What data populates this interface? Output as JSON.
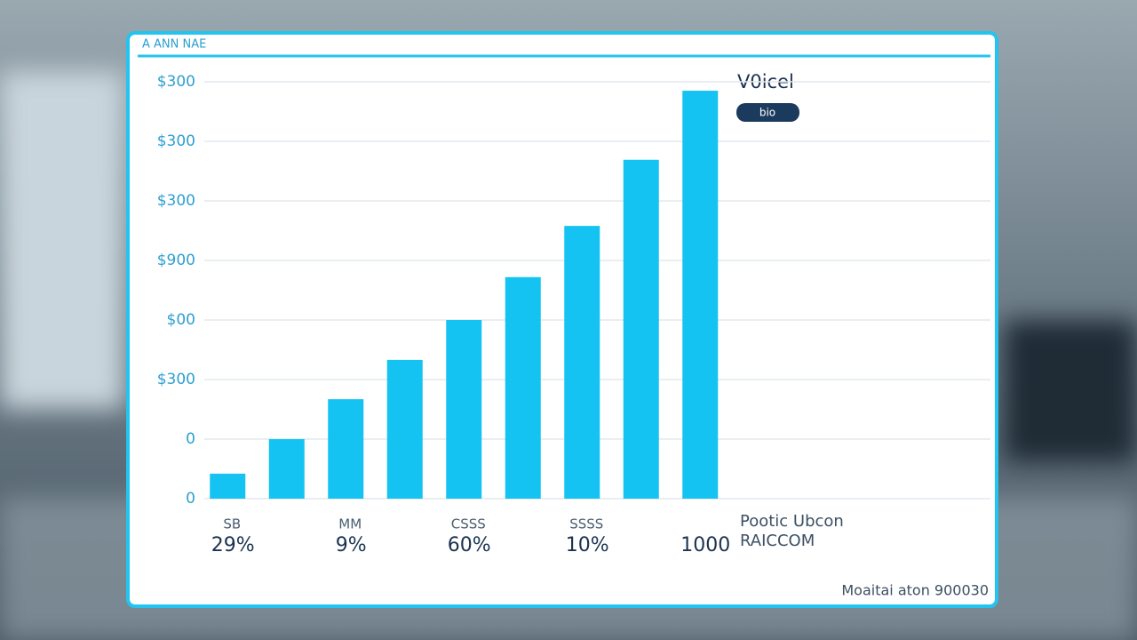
{
  "chart_data": {
    "type": "bar",
    "title": "A ANN NAE",
    "categories": [
      "SB",
      null,
      "MM",
      null,
      "CSSS",
      null,
      "SSSS",
      null,
      null
    ],
    "category_notes": [
      "29%",
      null,
      "9%",
      null,
      "60%",
      null,
      "10%",
      null,
      "1000"
    ],
    "series": [
      {
        "name": "V0icel",
        "color": "#14c3f2",
        "values": [
          0.42,
          1.0,
          1.67,
          2.33,
          3.0,
          3.72,
          4.58,
          5.69,
          6.85
        ]
      }
    ],
    "legend_badge": "bio",
    "ylim": [
      0,
      7
    ],
    "yticks": [
      0,
      {
        "value": 1,
        "label": "0"
      },
      {
        "value": 2,
        "label": "$300"
      },
      {
        "value": 3,
        "label": "$00"
      },
      {
        "value": 4,
        "label": "$900"
      },
      {
        "value": 5,
        "label": "$300"
      },
      {
        "value": 6,
        "label": "$300"
      },
      {
        "value": 7,
        "label": "$300"
      }
    ],
    "grid": true,
    "annotation": [
      "Pootic Ubcon",
      "RAICCOM"
    ],
    "footer": "Moaitai aton 900030"
  }
}
